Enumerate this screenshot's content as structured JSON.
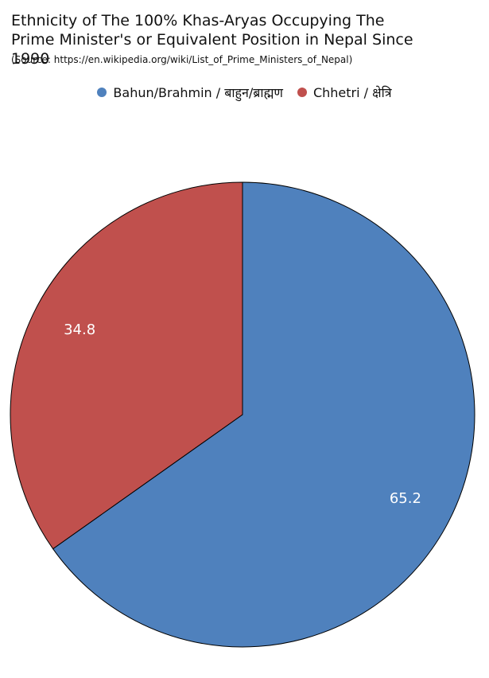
{
  "chart_data": {
    "type": "pie",
    "title": "Ethnicity of The 100% Khas-Aryas Occupying The Prime Minister's or Equivalent Position in Nepal Since 1990",
    "subtitle": "(Source: https://en.wikipedia.org/wiki/List_of_Prime_Ministers_of_Nepal)",
    "categories": [
      "Bahun/Brahmin / बाहुन/ब्राह्मण",
      "Chhetri / क्षेत्रि"
    ],
    "values": [
      65.2,
      34.8
    ],
    "colors": [
      "#4f81bd",
      "#c0504d"
    ],
    "legend": "top"
  }
}
